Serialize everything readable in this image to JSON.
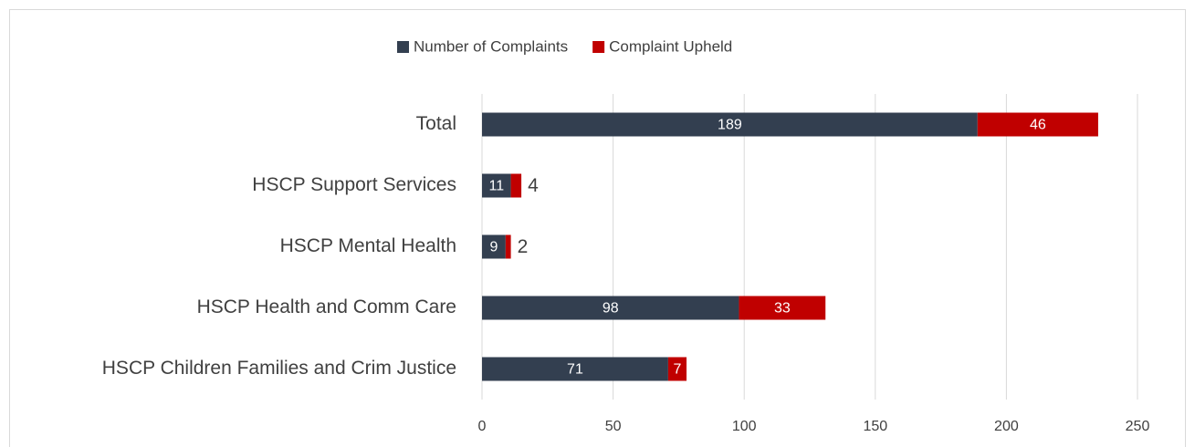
{
  "chart_data": {
    "type": "stacked_barh",
    "categories": [
      "Total",
      "HSCP Support Services",
      "HSCP Mental Health",
      "HSCP Health and Comm Care",
      "HSCP Children Families and Crim Justice"
    ],
    "series": [
      {
        "name": "Number of Complaints",
        "color": "#333f50",
        "values": [
          189,
          11,
          9,
          98,
          71
        ]
      },
      {
        "name": "Complaint Upheld",
        "color": "#c00000",
        "values": [
          46,
          4,
          2,
          33,
          7
        ]
      }
    ],
    "xlim": [
      0,
      250
    ],
    "xticks": [
      0,
      50,
      100,
      150,
      200,
      250
    ],
    "grid": true,
    "legend": "top"
  }
}
